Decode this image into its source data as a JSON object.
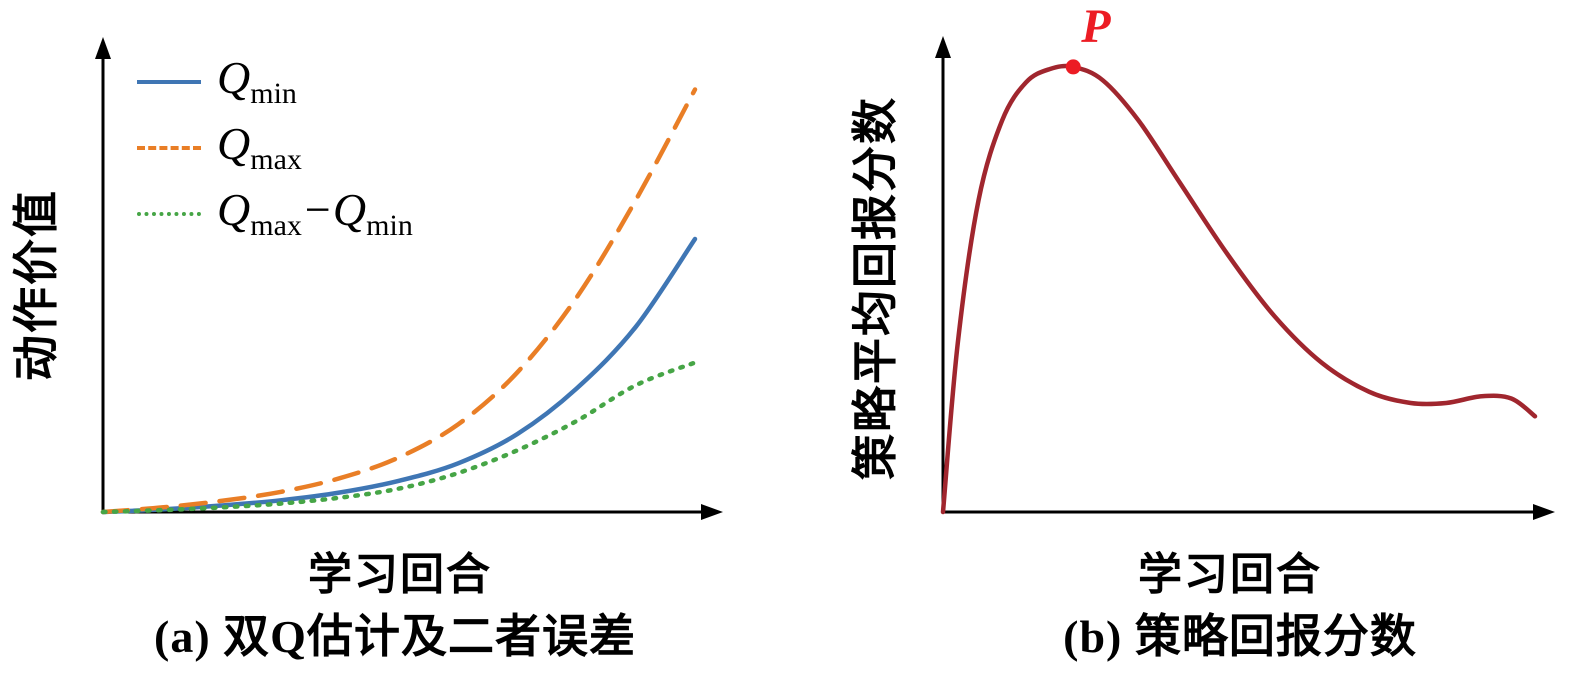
{
  "figure": {
    "background": "#ffffff",
    "axis_color": "#000000"
  },
  "chart_data": [
    {
      "id": "a",
      "type": "line",
      "caption": "(a) 双Q估计及二者误差",
      "xlabel": "学习回合",
      "ylabel": "动作价值",
      "x": [
        0,
        1,
        2,
        3,
        4,
        5,
        6,
        7,
        8,
        9,
        10
      ],
      "xlim": [
        0,
        10
      ],
      "ylim": [
        0,
        70
      ],
      "grid": false,
      "legend_position": "top-left",
      "series": [
        {
          "label": "Q_min",
          "name_base": "Q",
          "name_sub": "min",
          "style": "solid",
          "color": "#3f76b4",
          "values": [
            0,
            0.4,
            1,
            1.8,
            3,
            4.8,
            7.5,
            12,
            19,
            28.5,
            42
          ]
        },
        {
          "label": "Q_max",
          "name_base": "Q",
          "name_sub": "max",
          "style": "dashed",
          "color": "#e97e26",
          "values": [
            0,
            0.7,
            1.7,
            3.1,
            5.2,
            8.4,
            13.5,
            21.5,
            33,
            48,
            65
          ]
        },
        {
          "label": "Q_max−Q_min",
          "name_base": "Q",
          "name_sub": "max",
          "name_base2": "−Q",
          "name_sub2": "min",
          "style": "dotted",
          "color": "#46a546",
          "values": [
            0,
            0.3,
            0.7,
            1.3,
            2.2,
            3.6,
            6,
            9.5,
            14,
            19.5,
            23
          ]
        }
      ]
    },
    {
      "id": "b",
      "type": "line",
      "caption": "(b) 策略回报分数",
      "xlabel": "学习回合",
      "ylabel": "策略平均回报分数",
      "xlim": [
        0,
        10
      ],
      "ylim": [
        0,
        1.02
      ],
      "grid": false,
      "series": [
        {
          "label": "策略平均回报分数",
          "style": "solid",
          "color": "#a0262e",
          "x": [
            0,
            0.25,
            0.6,
            1.0,
            1.4,
            1.8,
            2.2,
            2.7,
            3.3,
            4.0,
            4.8,
            5.6,
            6.4,
            7.2,
            7.9,
            8.5,
            9.1,
            9.6,
            10
          ],
          "values": [
            0,
            0.38,
            0.7,
            0.88,
            0.965,
            0.995,
            1.0,
            0.97,
            0.88,
            0.74,
            0.58,
            0.44,
            0.335,
            0.27,
            0.245,
            0.245,
            0.26,
            0.255,
            0.215
          ]
        }
      ],
      "point": {
        "label": "P",
        "x": 2.2,
        "y": 1.0,
        "color": "#ec1c24"
      }
    }
  ]
}
